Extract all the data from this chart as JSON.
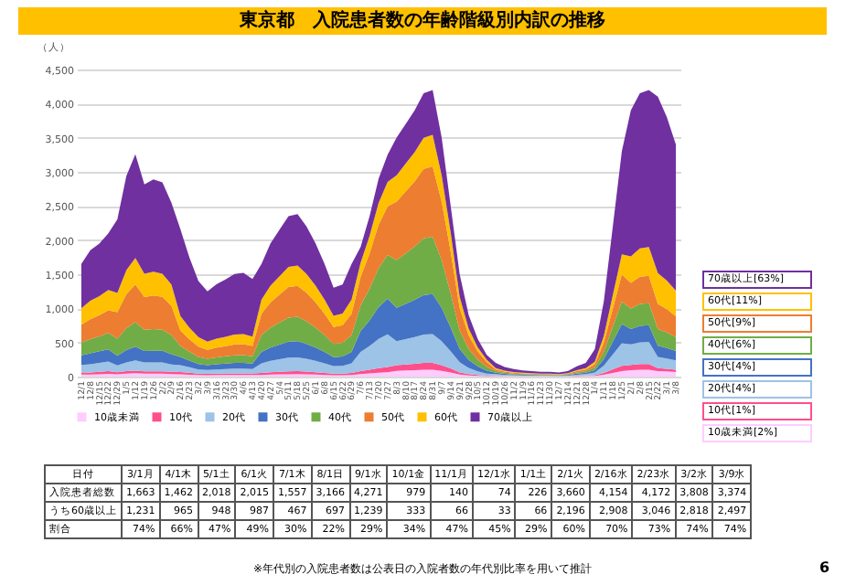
{
  "chart_data": {
    "type": "area",
    "stacked": true,
    "title": "東京都　入院患者数の年齢階級別内訳の推移",
    "ylabel": "（人）",
    "grid": "y",
    "legend": "bottom",
    "categories": [
      "12/1",
      "12/8",
      "12/15",
      "12/22",
      "12/29",
      "1/5",
      "1/12",
      "1/19",
      "1/26",
      "2/2",
      "2/9",
      "2/16",
      "2/23",
      "3/2",
      "3/9",
      "3/16",
      "3/23",
      "3/30",
      "4/6",
      "4/13",
      "4/20",
      "4/27",
      "5/4",
      "5/11",
      "5/18",
      "5/25",
      "6/1",
      "6/8",
      "6/15",
      "6/22",
      "6/29",
      "7/6",
      "7/13",
      "7/20",
      "7/27",
      "8/3",
      "8/10",
      "8/17",
      "8/24",
      "8/31",
      "9/7",
      "9/14",
      "9/21",
      "9/28",
      "10/5",
      "10/12",
      "10/19",
      "10/26",
      "11/2",
      "11/9",
      "11/16",
      "11/23",
      "11/30",
      "12/7",
      "12/14",
      "12/21",
      "12/28",
      "1/4",
      "1/11",
      "1/18",
      "1/25",
      "2/1",
      "2/8",
      "2/15",
      "2/22",
      "3/1",
      "3/8"
    ],
    "ylim": [
      0,
      4500
    ],
    "yticks": [
      0,
      500,
      {
        "value": 1000,
        "label": "1,000"
      },
      {
        "value": 1500,
        "label": "1,500"
      },
      {
        "value": 2000,
        "label": "2,000"
      },
      {
        "value": 2500,
        "label": "2,500"
      },
      {
        "value": 3000,
        "label": "3,000"
      },
      {
        "value": 3500,
        "label": "3,500"
      },
      {
        "value": 4000,
        "label": "4,000"
      },
      {
        "value": 4500,
        "label": "4,500"
      }
    ],
    "series": [
      {
        "name": "10歳未満",
        "color": "#ffccff",
        "values": [
          30,
          30,
          35,
          40,
          35,
          44,
          49,
          42,
          43,
          43,
          38,
          34,
          28,
          22,
          20,
          22,
          23,
          24,
          24,
          23,
          25,
          29,
          32,
          35,
          36,
          33,
          29,
          25,
          20,
          20,
          25,
          38,
          47,
          58,
          65,
          84,
          89,
          94,
          100,
          101,
          84,
          60,
          30,
          18,
          11,
          6,
          10,
          7,
          6,
          5,
          4,
          4,
          4,
          3,
          4,
          8,
          10,
          10,
          26,
          53,
          79,
          94,
          100,
          101,
          82,
          76,
          68
        ]
      },
      {
        "name": "10代",
        "color": "#ff4f8b",
        "values": [
          30,
          30,
          35,
          40,
          30,
          35,
          39,
          34,
          35,
          34,
          31,
          34,
          28,
          22,
          20,
          22,
          23,
          24,
          24,
          23,
          30,
          35,
          39,
          42,
          43,
          40,
          35,
          30,
          23,
          24,
          30,
          44,
          54,
          67,
          75,
          84,
          89,
          94,
          100,
          101,
          84,
          60,
          30,
          18,
          11,
          6,
          6,
          4,
          3,
          3,
          2,
          2,
          2,
          2,
          2,
          5,
          6,
          10,
          26,
          53,
          79,
          78,
          83,
          84,
          41,
          38,
          34
        ]
      },
      {
        "name": "20代",
        "color": "#9dc3e6",
        "values": [
          110,
          120,
          130,
          140,
          100,
          130,
          150,
          130,
          130,
          130,
          110,
          100,
          80,
          60,
          56,
          61,
          64,
          68,
          68,
          64,
          140,
          166,
          183,
          200,
          202,
          187,
          166,
          140,
          111,
          115,
          140,
          281,
          348,
          429,
          481,
          350,
          370,
          390,
          415,
          420,
          350,
          250,
          150,
          90,
          55,
          32,
          20,
          14,
          11,
          9,
          8,
          7,
          7,
          6,
          8,
          15,
          20,
          40,
          110,
          220,
          330,
          300,
          320,
          323,
          164,
          152,
          136
        ]
      },
      {
        "name": "30代",
        "color": "#4472c4",
        "values": [
          140,
          160,
          170,
          180,
          140,
          180,
          200,
          170,
          170,
          170,
          150,
          120,
          100,
          80,
          70,
          76,
          80,
          84,
          85,
          80,
          165,
          195,
          215,
          235,
          238,
          220,
          195,
          165,
          130,
          135,
          165,
          304,
          376,
          464,
          520,
          490,
          518,
          546,
          581,
          588,
          490,
          350,
          195,
          117,
          72,
          42,
          20,
          14,
          11,
          9,
          8,
          7,
          7,
          6,
          8,
          15,
          20,
          34,
          94,
          187,
          281,
          226,
          241,
          244,
          164,
          152,
          136
        ]
      },
      {
        "name": "40代",
        "color": "#70ad47",
        "values": [
          190,
          210,
          220,
          240,
          250,
          320,
          360,
          310,
          320,
          310,
          280,
          160,
          130,
          105,
          94,
          101,
          107,
          113,
          114,
          107,
          248,
          293,
          323,
          353,
          357,
          330,
          293,
          248,
          195,
          203,
          248,
          374,
          463,
          571,
          640,
          700,
          740,
          780,
          830,
          840,
          700,
          500,
          270,
          162,
          99,
          58,
          24,
          17,
          13,
          11,
          10,
          8,
          8,
          7,
          10,
          18,
          24,
          40,
          110,
          220,
          330,
          300,
          320,
          323,
          246,
          228,
          204
        ]
      },
      {
        "name": "50代",
        "color": "#ed7d31",
        "values": [
          260,
          290,
          310,
          330,
          390,
          500,
          550,
          480,
          490,
          480,
          430,
          230,
          180,
          150,
          131,
          142,
          149,
          158,
          160,
          150,
          314,
          371,
          409,
          447,
          452,
          418,
          371,
          314,
          247,
          257,
          314,
          418,
          517,
          638,
          715,
          858,
          907,
          956,
          1017,
          1029,
          858,
          613,
          330,
          198,
          121,
          70,
          24,
          17,
          13,
          11,
          10,
          8,
          8,
          7,
          10,
          18,
          24,
          48,
          132,
          264,
          396,
          374,
          398,
          403,
          369,
          342,
          306
        ]
      },
      {
        "name": "60代",
        "color": "#ffc000",
        "values": [
          240,
          270,
          280,
          300,
          280,
          350,
          390,
          340,
          350,
          340,
          310,
          210,
          170,
          140,
          121,
          131,
          138,
          146,
          147,
          139,
          206,
          244,
          269,
          294,
          298,
          275,
          244,
          206,
          163,
          169,
          206,
          209,
          259,
          319,
          358,
          385,
          407,
          429,
          457,
          462,
          385,
          275,
          165,
          99,
          61,
          35,
          20,
          14,
          11,
          9,
          8,
          7,
          7,
          6,
          8,
          15,
          20,
          36,
          99,
          198,
          297,
          390,
          415,
          420,
          451,
          418,
          374
        ]
      },
      {
        "name": "70歳以上",
        "color": "#7030a0",
        "values": [
          650,
          740,
          770,
          830,
          1080,
          1380,
          1520,
          1310,
          1350,
          1340,
          1200,
          1270,
          1030,
          820,
          738,
          797,
          838,
          885,
          897,
          844,
          523,
          618,
          682,
          745,
          754,
          697,
          618,
          523,
          412,
          428,
          523,
          232,
          287,
          354,
          397,
          550,
          581,
          612,
          652,
          659,
          550,
          393,
          330,
          198,
          121,
          70,
          76,
          53,
          42,
          34,
          30,
          27,
          27,
          23,
          30,
          57,
          76,
          183,
          503,
          1005,
          1508,
          2137,
          2274,
          2302,
          2583,
          2394,
          2142
        ]
      }
    ],
    "annotations": [
      "70歳以上[63%]",
      "60代[11%]",
      "50代[9%]",
      "40代[6%]",
      "30代[4%]",
      "20代[4%]",
      "10代[1%]",
      "10歳未満[2%]",
      "日付",
      "3/1月",
      "4/1木",
      "5/1土",
      "6/1火",
      "7/1木",
      "8/1日",
      "9/1水",
      "10/1金",
      "11/1月",
      "12/1水",
      "1/1土",
      "2/1火",
      "2/16水",
      "2/23水",
      "3/2水",
      "3/9水",
      "入院患者総数",
      "1,663",
      "1,462",
      "2,018",
      "2,015",
      "1,557",
      "3,166",
      "4,271",
      "979",
      "140",
      "74",
      "226",
      "3,660",
      "4,154",
      "4,172",
      "3,808",
      "3,374",
      "うち60歳以上",
      "1,231",
      "965",
      "948",
      "987",
      "467",
      "697",
      "1,239",
      "333",
      "66",
      "33",
      "66",
      "2,196",
      "2,908",
      "3,046",
      "2,818",
      "2,497",
      "割合",
      "74%",
      "66%",
      "47%",
      "49%",
      "30%",
      "22%",
      "29%",
      "34%",
      "47%",
      "45%",
      "29%",
      "60%",
      "70%",
      "73%",
      "74%",
      "74%",
      "※年代別の入院患者数は公表日の入院者数の年代別比率を用いて推計",
      "6"
    ]
  }
}
